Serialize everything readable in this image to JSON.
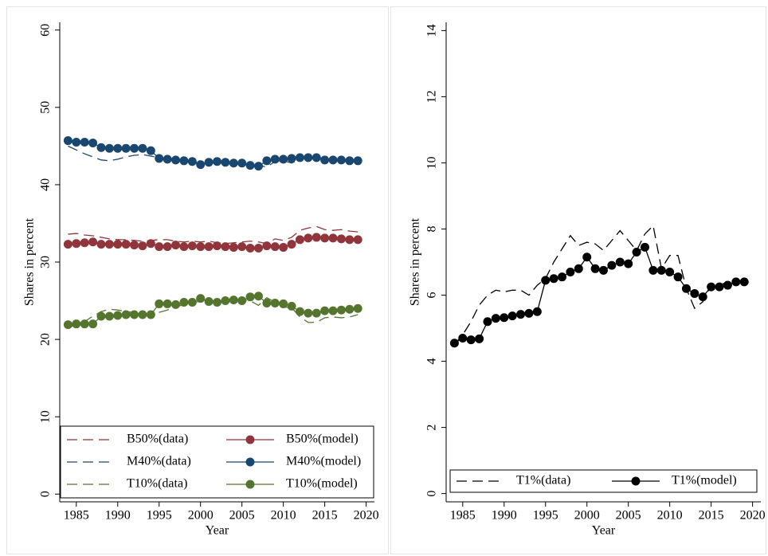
{
  "chart_data": [
    {
      "type": "line",
      "xlabel": "Year",
      "ylabel": "Shares in percent",
      "x": [
        1984,
        1985,
        1986,
        1987,
        1988,
        1989,
        1990,
        1991,
        1992,
        1993,
        1994,
        1995,
        1996,
        1997,
        1998,
        1999,
        2000,
        2001,
        2002,
        2003,
        2004,
        2005,
        2006,
        2007,
        2008,
        2009,
        2010,
        2011,
        2012,
        2013,
        2014,
        2015,
        2016,
        2017,
        2018,
        2019
      ],
      "xlim": [
        1983,
        2021
      ],
      "xticks": [
        1985,
        1990,
        1995,
        2000,
        2005,
        2010,
        2015,
        2020
      ],
      "ylim": [
        -1,
        61
      ],
      "yticks": [
        0,
        10,
        20,
        30,
        40,
        50,
        60
      ],
      "grid": false,
      "legend": "bottom",
      "legend_columns": 2,
      "series": [
        {
          "name": "B50%(data)",
          "color": "#90353b",
          "line_style": "dash",
          "marker": false,
          "values": [
            33.6,
            33.7,
            33.5,
            33.4,
            33.2,
            33.0,
            32.9,
            32.9,
            32.8,
            32.7,
            32.8,
            32.9,
            32.9,
            32.7,
            32.6,
            32.7,
            32.6,
            32.7,
            32.5,
            32.4,
            32.5,
            32.6,
            32.7,
            32.6,
            32.4,
            33.0,
            32.8,
            33.2,
            34.1,
            34.4,
            34.6,
            34.2,
            34.1,
            34.2,
            34.0,
            33.9
          ]
        },
        {
          "name": "B50%(model)",
          "color": "#90353b",
          "line_style": "solid",
          "marker": true,
          "values": [
            32.3,
            32.4,
            32.5,
            32.6,
            32.3,
            32.3,
            32.3,
            32.3,
            32.2,
            32.1,
            32.4,
            32.0,
            32.0,
            32.2,
            32.0,
            32.1,
            32.0,
            32.0,
            32.1,
            32.0,
            31.9,
            32.0,
            31.8,
            31.8,
            32.1,
            32.0,
            31.9,
            32.3,
            32.9,
            33.1,
            33.2,
            33.1,
            33.1,
            33.0,
            32.9,
            32.9
          ]
        },
        {
          "name": "M40%(data)",
          "color": "#1a476f",
          "line_style": "dash",
          "marker": false,
          "values": [
            45.0,
            44.5,
            44.0,
            43.6,
            43.2,
            43.1,
            43.3,
            43.6,
            43.8,
            43.9,
            43.7,
            43.5,
            43.3,
            43.2,
            43.0,
            42.9,
            42.8,
            42.9,
            42.9,
            42.8,
            42.7,
            42.6,
            42.7,
            42.5,
            42.3,
            43.0,
            43.1,
            42.8,
            43.3,
            43.6,
            43.6,
            43.3,
            43.2,
            43.2,
            43.1,
            43.0
          ]
        },
        {
          "name": "M40%(model)",
          "color": "#1a476f",
          "line_style": "solid",
          "marker": true,
          "values": [
            45.7,
            45.5,
            45.5,
            45.4,
            44.8,
            44.7,
            44.7,
            44.7,
            44.7,
            44.7,
            44.4,
            43.4,
            43.3,
            43.2,
            43.1,
            43.0,
            42.6,
            42.9,
            43.0,
            42.9,
            42.8,
            42.8,
            42.5,
            42.4,
            43.1,
            43.3,
            43.3,
            43.4,
            43.5,
            43.5,
            43.5,
            43.2,
            43.2,
            43.2,
            43.1,
            43.1
          ]
        },
        {
          "name": "T10%(data)",
          "color": "#55752f",
          "line_style": "dash",
          "marker": false,
          "values": [
            21.5,
            21.9,
            22.3,
            23.0,
            23.6,
            23.9,
            23.8,
            23.6,
            23.5,
            23.3,
            23.3,
            23.5,
            23.8,
            24.2,
            24.5,
            24.8,
            24.9,
            24.7,
            24.9,
            25.1,
            25.2,
            25.1,
            25.0,
            24.4,
            25.4,
            24.8,
            24.2,
            24.1,
            22.9,
            22.2,
            22.2,
            22.8,
            22.9,
            22.8,
            22.9,
            23.2
          ]
        },
        {
          "name": "T10%(model)",
          "color": "#55752f",
          "line_style": "solid",
          "marker": true,
          "values": [
            21.9,
            22.0,
            22.0,
            22.0,
            23.0,
            23.0,
            23.1,
            23.2,
            23.2,
            23.2,
            23.2,
            24.6,
            24.6,
            24.5,
            24.8,
            24.8,
            25.3,
            24.9,
            24.8,
            25.0,
            25.1,
            25.0,
            25.5,
            25.6,
            24.7,
            24.7,
            24.6,
            24.3,
            23.6,
            23.4,
            23.4,
            23.7,
            23.7,
            23.8,
            23.9,
            24.0
          ]
        }
      ]
    },
    {
      "type": "line",
      "xlabel": "Year",
      "ylabel": "Shares in percent",
      "x": [
        1984,
        1985,
        1986,
        1987,
        1988,
        1989,
        1990,
        1991,
        1992,
        1993,
        1994,
        1995,
        1996,
        1997,
        1998,
        1999,
        2000,
        2001,
        2002,
        2003,
        2004,
        2005,
        2006,
        2007,
        2008,
        2009,
        2010,
        2011,
        2012,
        2013,
        2014,
        2015,
        2016,
        2017,
        2018,
        2019
      ],
      "xlim": [
        1983,
        2021
      ],
      "xticks": [
        1985,
        1990,
        1995,
        2000,
        2005,
        2010,
        2015,
        2020
      ],
      "ylim": [
        -0.25,
        14.25
      ],
      "yticks": [
        0,
        2,
        4,
        6,
        8,
        10,
        12,
        14
      ],
      "grid": false,
      "legend": "bottom",
      "legend_columns": 2,
      "series": [
        {
          "name": "T1%(data)",
          "color": "#000000",
          "line_style": "dash",
          "marker": false,
          "values": [
            4.5,
            4.8,
            5.2,
            5.7,
            6.0,
            6.15,
            6.1,
            6.15,
            6.15,
            6.0,
            6.3,
            6.5,
            7.0,
            7.4,
            7.8,
            7.5,
            7.6,
            7.55,
            7.35,
            7.65,
            7.95,
            7.65,
            7.35,
            7.85,
            8.1,
            6.8,
            7.2,
            7.2,
            6.2,
            5.6,
            5.8,
            6.3,
            6.3,
            6.4,
            6.4,
            6.4
          ]
        },
        {
          "name": "T1%(model)",
          "color": "#000000",
          "line_style": "solid",
          "marker": true,
          "values": [
            4.55,
            4.7,
            4.65,
            4.68,
            5.2,
            5.3,
            5.32,
            5.37,
            5.42,
            5.45,
            5.5,
            6.45,
            6.5,
            6.55,
            6.7,
            6.8,
            7.15,
            6.8,
            6.75,
            6.9,
            7.0,
            6.95,
            7.3,
            7.45,
            6.75,
            6.75,
            6.7,
            6.55,
            6.2,
            6.05,
            5.95,
            6.25,
            6.25,
            6.3,
            6.4,
            6.4
          ]
        }
      ]
    }
  ]
}
